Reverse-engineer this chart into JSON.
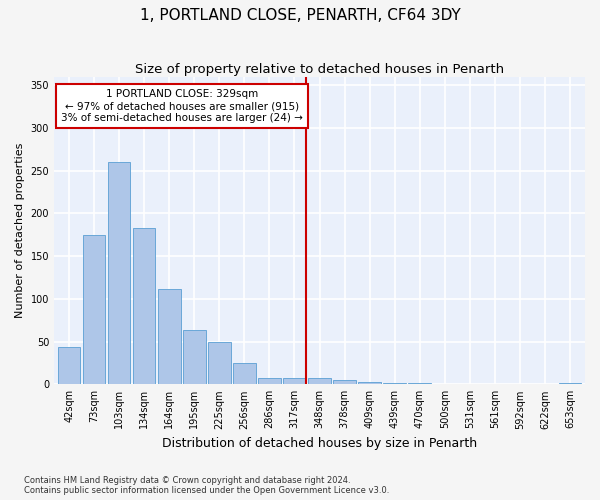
{
  "title": "1, PORTLAND CLOSE, PENARTH, CF64 3DY",
  "subtitle": "Size of property relative to detached houses in Penarth",
  "xlabel": "Distribution of detached houses by size in Penarth",
  "ylabel": "Number of detached properties",
  "footer_line1": "Contains HM Land Registry data © Crown copyright and database right 2024.",
  "footer_line2": "Contains public sector information licensed under the Open Government Licence v3.0.",
  "bar_labels": [
    "42sqm",
    "73sqm",
    "103sqm",
    "134sqm",
    "164sqm",
    "195sqm",
    "225sqm",
    "256sqm",
    "286sqm",
    "317sqm",
    "348sqm",
    "378sqm",
    "409sqm",
    "439sqm",
    "470sqm",
    "500sqm",
    "531sqm",
    "561sqm",
    "592sqm",
    "622sqm",
    "653sqm"
  ],
  "bar_heights": [
    44,
    175,
    260,
    183,
    112,
    64,
    50,
    25,
    7,
    7,
    7,
    5,
    3,
    2,
    1,
    0,
    0,
    0,
    0,
    0,
    2
  ],
  "bar_color": "#aec6e8",
  "bar_edge_color": "#5a9fd4",
  "background_color": "#eaf0fb",
  "fig_background_color": "#f5f5f5",
  "grid_color": "#ffffff",
  "annotation_box_text": "1 PORTLAND CLOSE: 329sqm\n← 97% of detached houses are smaller (915)\n3% of semi-detached houses are larger (24) →",
  "annotation_box_color": "#ffffff",
  "annotation_box_edge_color": "#cc0000",
  "vline_color": "#cc0000",
  "vline_index": 9,
  "ylim": [
    0,
    360
  ],
  "yticks": [
    0,
    50,
    100,
    150,
    200,
    250,
    300,
    350
  ],
  "title_fontsize": 11,
  "subtitle_fontsize": 9.5,
  "annotation_fontsize": 7.5,
  "tick_fontsize": 7,
  "ylabel_fontsize": 8,
  "xlabel_fontsize": 9,
  "footer_fontsize": 6
}
